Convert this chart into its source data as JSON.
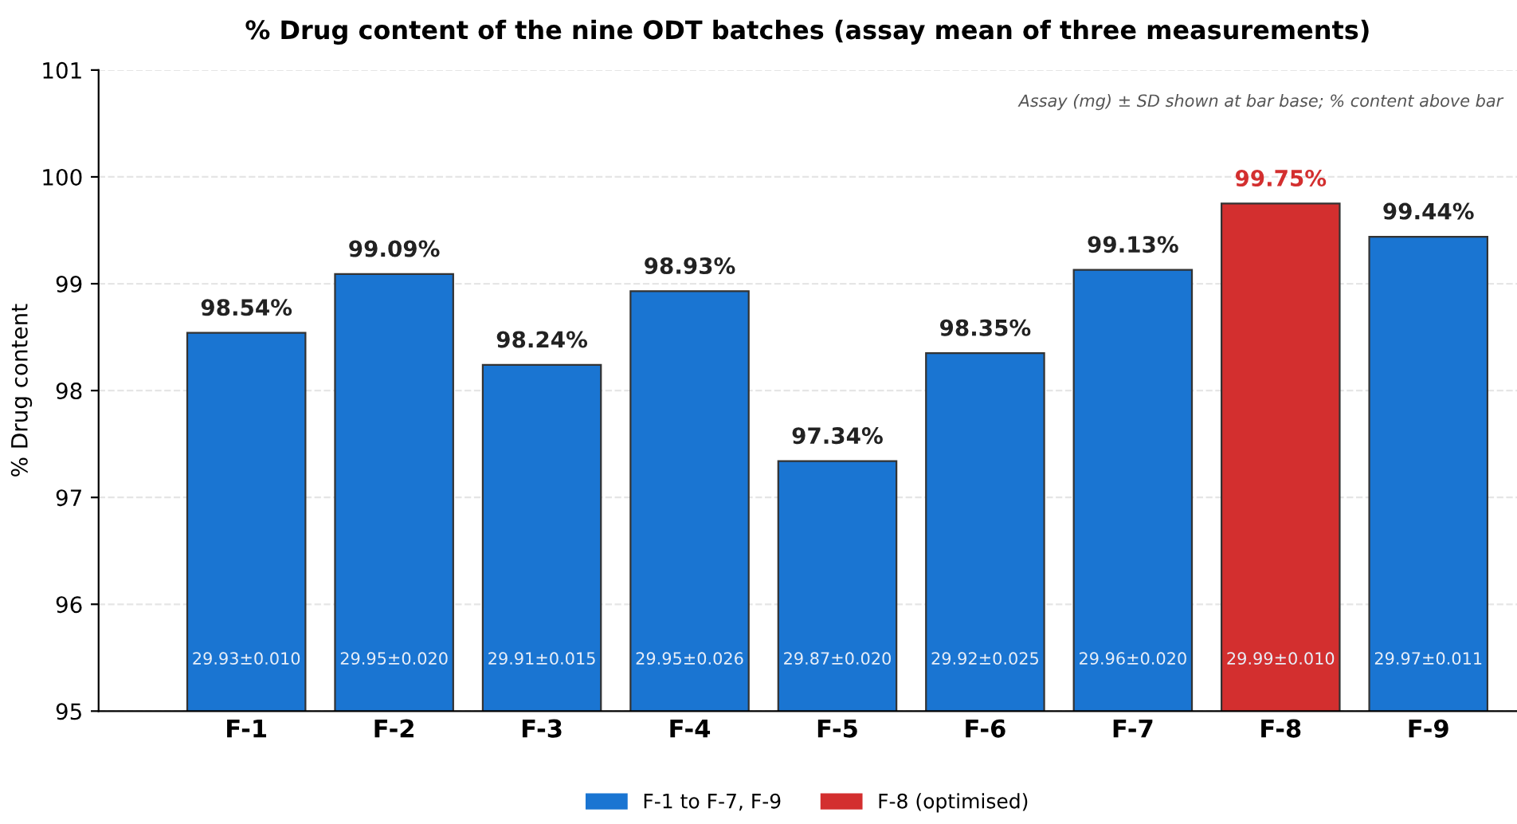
{
  "chart_data": {
    "type": "bar",
    "title": "% Drug content of the nine ODT batches (assay mean of three measurements)",
    "ylabel": "% Drug content",
    "categories": [
      "F-1",
      "F-2",
      "F-3",
      "F-4",
      "F-5",
      "F-6",
      "F-7",
      "F-8",
      "F-9"
    ],
    "stacked": true,
    "series": [
      {
        "name": "F-1 to F-7, F-9",
        "color": "#1a75d2",
        "values": [
          98.54,
          99.09,
          98.24,
          98.93,
          97.34,
          98.35,
          99.13,
          null,
          99.44
        ],
        "value_labels": [
          "98.54%",
          "99.09%",
          "98.24%",
          "98.93%",
          "97.34%",
          "98.35%",
          "99.13%",
          null,
          "99.44%"
        ]
      },
      {
        "name": "F-8 (optimised)",
        "color": "#d32f2f",
        "values": [
          null,
          null,
          null,
          null,
          null,
          null,
          null,
          99.75,
          null
        ],
        "value_labels": [
          null,
          null,
          null,
          null,
          null,
          null,
          null,
          "99.75%",
          null
        ]
      }
    ],
    "ylim": [
      95,
      101
    ],
    "yticks": [
      95,
      96,
      97,
      98,
      99,
      100,
      101
    ],
    "grid": "y",
    "legend": "bottom",
    "annotations": [
      "29.93±0.010",
      "29.95±0.020",
      "29.91±0.015",
      "29.95±0.026",
      "29.87±0.020",
      "29.92±0.025",
      "29.96±0.020",
      "29.99±0.010",
      "29.97±0.011",
      "Assay (mg) ± SD shown at bar base; % content above bar"
    ]
  }
}
